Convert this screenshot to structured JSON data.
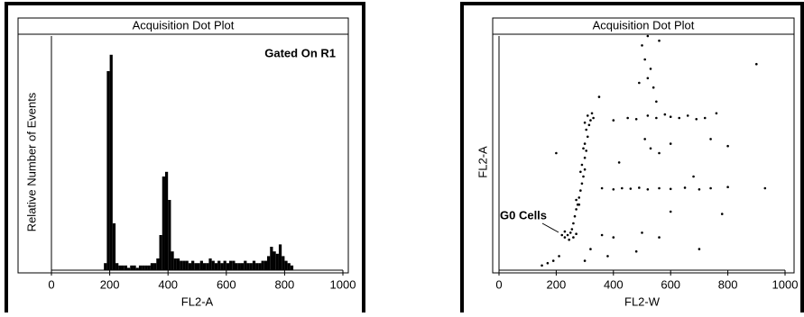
{
  "chart_data": [
    {
      "type": "histogram",
      "title": "Acquisition Dot Plot",
      "annotation": "Gated On R1",
      "x_label": "FL2-A",
      "y_label": "Relative Number of Events",
      "color": "#000000",
      "bins": [
        180,
        190,
        200,
        210,
        220,
        230,
        240,
        250,
        260,
        270,
        280,
        290,
        300,
        310,
        320,
        330,
        340,
        350,
        360,
        370,
        380,
        390,
        400,
        410,
        420,
        430,
        440,
        450,
        460,
        470,
        480,
        490,
        500,
        510,
        520,
        530,
        540,
        550,
        560,
        570,
        580,
        590,
        600,
        610,
        620,
        630,
        640,
        650,
        660,
        670,
        680,
        690,
        700,
        710,
        720,
        730,
        740,
        750,
        760,
        770,
        780,
        790,
        800,
        810,
        820,
        830
      ],
      "values": [
        3,
        85,
        92,
        20,
        3,
        2,
        2,
        2,
        1,
        2,
        2,
        1,
        2,
        2,
        2,
        2,
        3,
        3,
        5,
        15,
        40,
        42,
        30,
        8,
        5,
        5,
        4,
        4,
        4,
        3,
        4,
        3,
        3,
        4,
        3,
        3,
        5,
        4,
        3,
        4,
        3,
        4,
        3,
        4,
        4,
        3,
        3,
        3,
        4,
        3,
        3,
        4,
        3,
        3,
        4,
        4,
        6,
        10,
        8,
        7,
        11,
        6,
        4,
        3,
        2
      ],
      "xlim": [
        0,
        1000
      ],
      "xticks": [
        0,
        200,
        400,
        600,
        800,
        1000
      ],
      "ylim": [
        0,
        100
      ]
    },
    {
      "type": "scatter",
      "title": "Acquisition Dot Plot",
      "annotation": "G0 Cells",
      "x_label": "FL2-W",
      "y_label": "FL2-A",
      "color": "#000000",
      "x": [
        150,
        170,
        190,
        210,
        220,
        230,
        240,
        250,
        260,
        270,
        230,
        245,
        255,
        260,
        265,
        270,
        275,
        280,
        285,
        290,
        295,
        300,
        290,
        300,
        305,
        300,
        310,
        305,
        315,
        320,
        330,
        310,
        325,
        300,
        280,
        270,
        285,
        295,
        400,
        450,
        480,
        520,
        550,
        580,
        600,
        630,
        660,
        690,
        720,
        760,
        360,
        400,
        430,
        460,
        490,
        520,
        560,
        600,
        650,
        700,
        740,
        800,
        930,
        500,
        520,
        510,
        530,
        520,
        540,
        550,
        490,
        560,
        510,
        530,
        560,
        600,
        320,
        360,
        400,
        500,
        480,
        560,
        700,
        900,
        200,
        680,
        740,
        800,
        350,
        420,
        600,
        780,
        300,
        380
      ],
      "y": [
        20,
        30,
        40,
        60,
        150,
        140,
        150,
        160,
        140,
        155,
        165,
        130,
        175,
        200,
        230,
        260,
        280,
        310,
        340,
        370,
        400,
        430,
        450,
        480,
        510,
        540,
        570,
        600,
        620,
        640,
        650,
        660,
        670,
        630,
        280,
        300,
        420,
        520,
        640,
        650,
        645,
        660,
        650,
        665,
        655,
        650,
        660,
        645,
        650,
        670,
        350,
        345,
        350,
        348,
        352,
        345,
        350,
        347,
        352,
        345,
        350,
        355,
        350,
        960,
        1000,
        900,
        860,
        820,
        780,
        720,
        800,
        980,
        560,
        520,
        500,
        540,
        90,
        150,
        140,
        160,
        80,
        140,
        90,
        880,
        500,
        400,
        560,
        530,
        740,
        460,
        250,
        240,
        40,
        60
      ],
      "xlim": [
        0,
        1000
      ],
      "xticks": [
        0,
        200,
        400,
        600,
        800,
        1000
      ],
      "ylim": [
        0,
        1000
      ]
    }
  ]
}
